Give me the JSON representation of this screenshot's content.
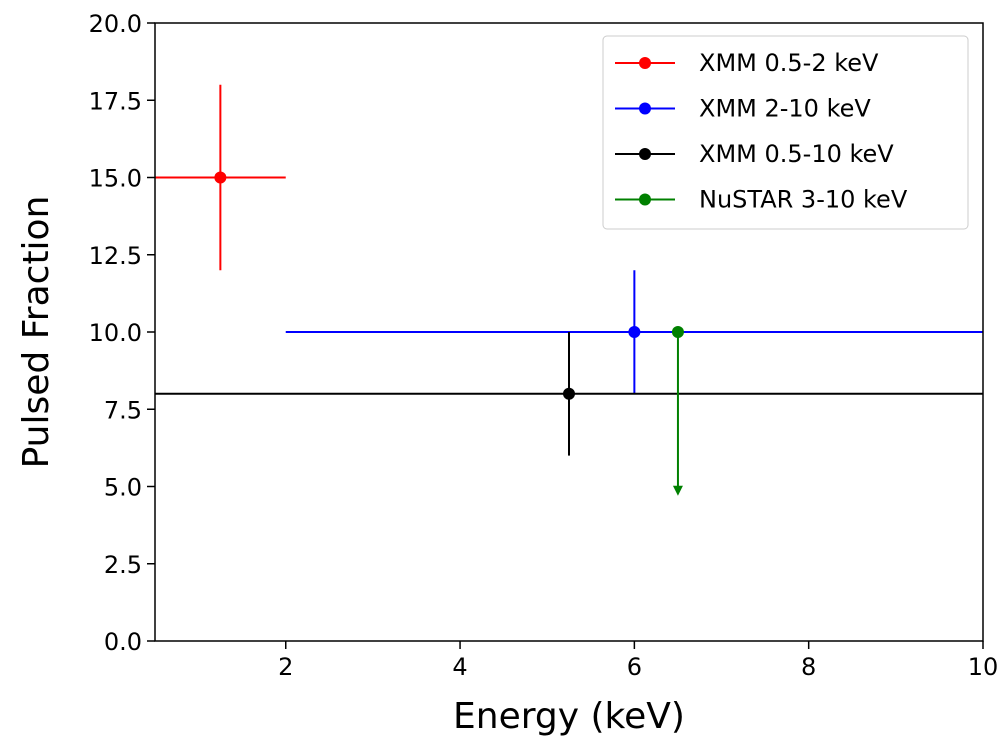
{
  "chart_data": {
    "type": "scatter",
    "title": "",
    "xlabel": "Energy (keV)",
    "ylabel": "Pulsed Fraction",
    "xlim": [
      0.5,
      10
    ],
    "ylim": [
      0,
      20
    ],
    "x_ticks": [
      2,
      4,
      6,
      8,
      10
    ],
    "x_tick_labels": [
      "2",
      "4",
      "6",
      "8",
      "10"
    ],
    "y_ticks": [
      0,
      2.5,
      5,
      7.5,
      10,
      12.5,
      15,
      17.5,
      20
    ],
    "y_tick_labels": [
      "0.0",
      "2.5",
      "5.0",
      "7.5",
      "10.0",
      "12.5",
      "15.0",
      "17.5",
      "20.0"
    ],
    "grid": false,
    "legend_position": "top-right",
    "series": [
      {
        "name": "XMM 0.5-2 keV",
        "color": "#ff0000",
        "x": 1.25,
        "y": 15,
        "x_range": [
          0.5,
          2
        ],
        "y_err": 3,
        "upper_limit": false
      },
      {
        "name": "XMM 2-10 keV",
        "color": "#0000ff",
        "x": 6,
        "y": 10,
        "x_range": [
          2,
          10
        ],
        "y_err": 2,
        "upper_limit": false
      },
      {
        "name": "XMM 0.5-10 keV",
        "color": "#000000",
        "x": 5.25,
        "y": 8,
        "x_range": [
          0.5,
          10
        ],
        "y_err": 2,
        "upper_limit": false
      },
      {
        "name": "NuSTAR 3-10 keV",
        "color": "#008000",
        "x": 6.5,
        "y": 10,
        "x_range": null,
        "y_err": null,
        "upper_limit": true,
        "arrow_to": 4.7
      }
    ]
  }
}
